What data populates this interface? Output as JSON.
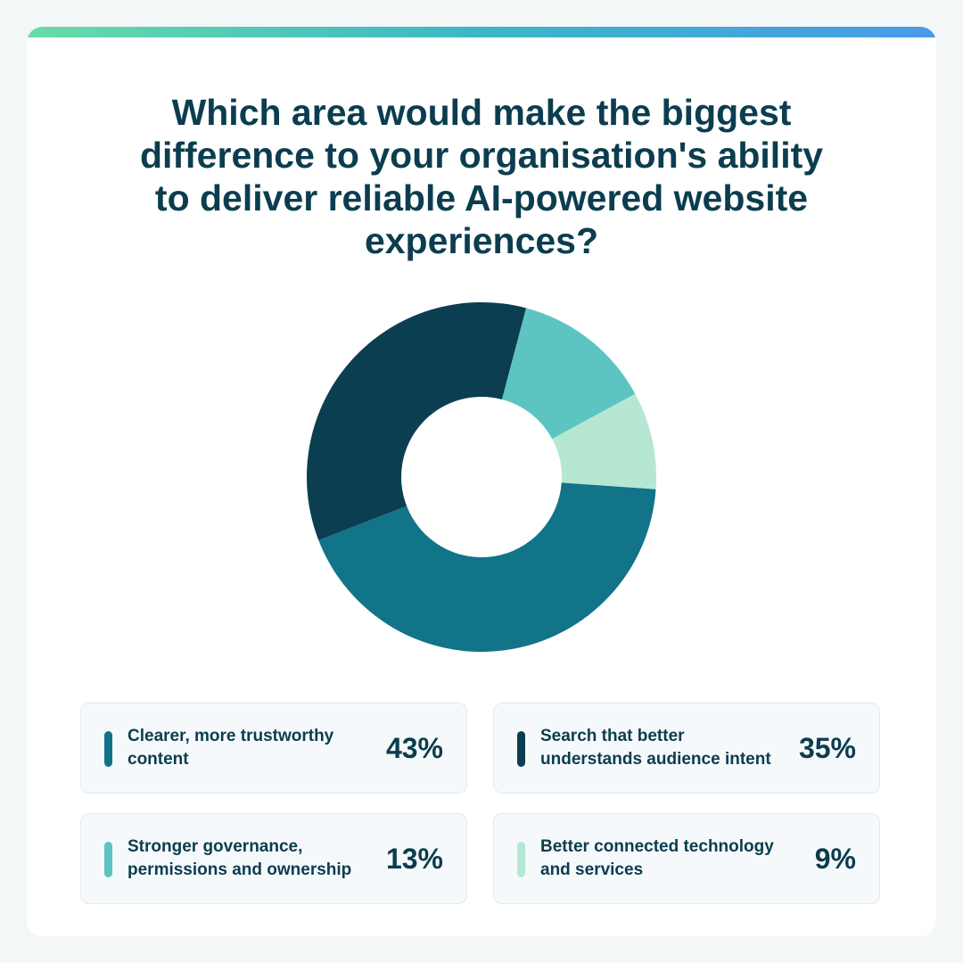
{
  "title": "Which area would make the biggest difference to your organisation's ability to deliver reliable AI-powered website experiences?",
  "colors": {
    "accent_gradient": [
      "#69dba8",
      "#3bb7c6",
      "#4a9ae8"
    ],
    "text": "#0b3d4f"
  },
  "chart_data": {
    "type": "pie",
    "variant": "donut",
    "title": "Which area would make the biggest difference to your organisation's ability to deliver reliable AI-powered website experiences?",
    "series": [
      {
        "name": "Clearer, more trustworthy content",
        "value": 43,
        "label": "43%",
        "color": "#117489"
      },
      {
        "name": "Search that better understands audience intent",
        "value": 35,
        "label": "35%",
        "color": "#0b3e50"
      },
      {
        "name": "Stronger governance, permissions and ownership",
        "value": 13,
        "label": "13%",
        "color": "#5cc5c2"
      },
      {
        "name": "Better connected technology and services",
        "value": 9,
        "label": "9%",
        "color": "#b6e7d3"
      }
    ]
  }
}
